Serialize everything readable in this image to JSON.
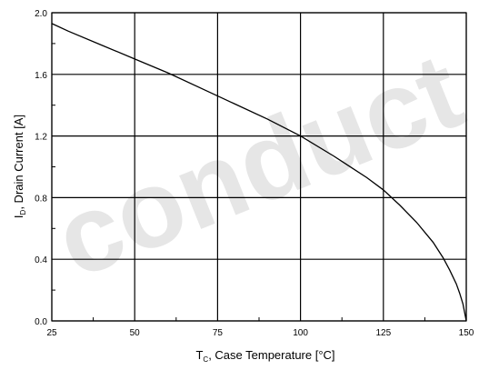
{
  "chart_data": {
    "type": "line",
    "title": "",
    "xlabel": {
      "main": "T",
      "sub": "C",
      "rest": ", Case Temperature [°C]"
    },
    "ylabel": {
      "main": "I",
      "sub": "D",
      "rest": ", Drain Current [A]"
    },
    "xlim": [
      25,
      150
    ],
    "ylim": [
      0,
      2.0
    ],
    "xticks": [
      "25",
      "50",
      "75",
      "100",
      "125",
      "150"
    ],
    "yticks": [
      "0.0",
      "0.4",
      "0.8",
      "1.2",
      "1.6",
      "2.0"
    ],
    "grid": true,
    "series": [
      {
        "x": [
          25,
          30,
          40,
          50,
          60,
          70,
          80,
          90,
          100,
          110,
          120,
          125,
          130,
          135,
          140,
          143,
          145,
          147,
          148,
          149,
          150
        ],
        "y": [
          1.93,
          1.88,
          1.79,
          1.7,
          1.61,
          1.51,
          1.41,
          1.31,
          1.2,
          1.07,
          0.93,
          0.85,
          0.75,
          0.64,
          0.51,
          0.41,
          0.33,
          0.24,
          0.18,
          0.11,
          0.0
        ]
      }
    ],
    "watermark": "conduct"
  }
}
